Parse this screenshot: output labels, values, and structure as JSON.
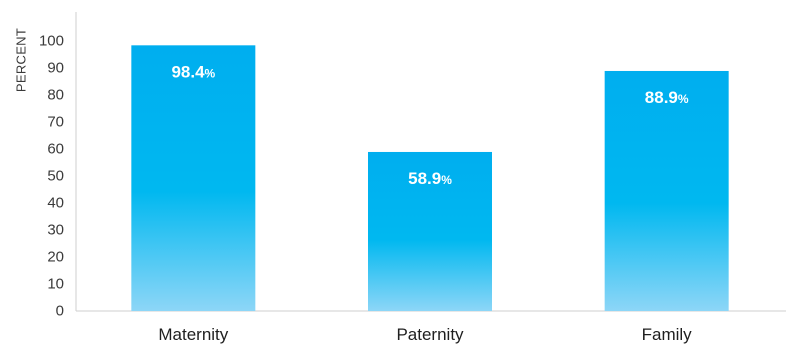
{
  "chart_data": {
    "type": "bar",
    "title": "",
    "xlabel": "",
    "ylabel": "PERCENT",
    "categories": [
      "Maternity",
      "Paternity",
      "Family"
    ],
    "values": [
      98.4,
      58.9,
      88.9
    ],
    "value_labels": [
      "98.4",
      "58.9",
      "88.9"
    ],
    "value_suffix": "%",
    "ylim": [
      0,
      100
    ],
    "yticks": [
      0,
      10,
      20,
      30,
      40,
      50,
      60,
      70,
      80,
      90,
      100
    ],
    "grid": false,
    "legend": "none",
    "colors": {
      "bar_top": "#00aeef",
      "bar_bottom": "#8dd6f7",
      "axis": "#cfcfcf",
      "data_label": "#ffffff"
    }
  }
}
